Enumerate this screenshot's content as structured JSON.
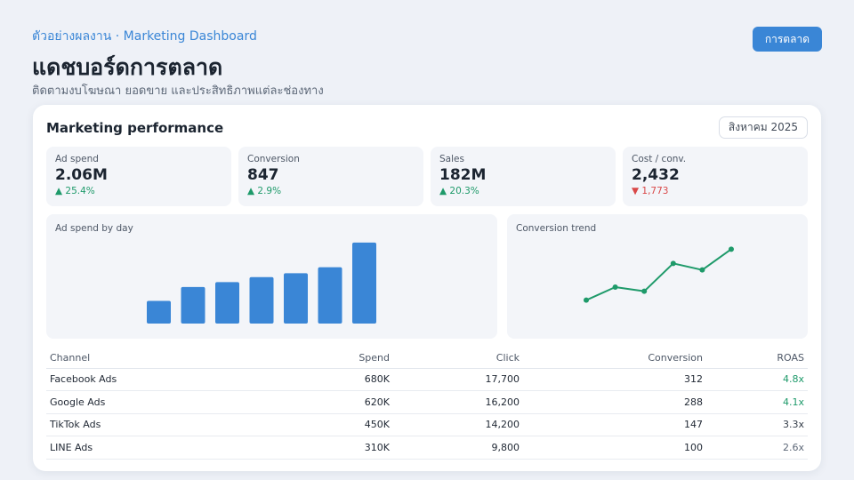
{
  "header": {
    "eyebrow": "ตัวอย่างผลงาน · Marketing Dashboard",
    "title": "แดชบอร์ดการตลาด",
    "subtitle": "ติดตามงบโฆษณา ยอดขาย และประสิทธิภาพแต่ละช่องทาง",
    "button_label": "การตลาด"
  },
  "card": {
    "title": "Marketing performance",
    "month_label": "สิงหาคม 2025"
  },
  "kpis": [
    {
      "label": "Ad spend",
      "value": "2.06M",
      "delta": "▲ 25.4%",
      "trend": "up"
    },
    {
      "label": "Conversion",
      "value": "847",
      "delta": "▲ 2.9%",
      "trend": "up"
    },
    {
      "label": "Sales",
      "value": "182M",
      "delta": "▲ 20.3%",
      "trend": "up"
    },
    {
      "label": "Cost / conv.",
      "value": "2,432",
      "delta": "▼ 1,773",
      "trend": "down"
    }
  ],
  "chart_data": [
    {
      "type": "bar",
      "title": "Ad spend by day",
      "values": [
        23,
        37,
        42,
        47,
        51,
        57,
        82
      ],
      "ylim": [
        0,
        90
      ],
      "grid": false,
      "color": "#3a86d6"
    },
    {
      "type": "line",
      "title": "Conversion trend",
      "values": [
        20,
        42,
        35,
        82,
        71,
        106
      ],
      "ylim": [
        0,
        120
      ],
      "grid": false,
      "color": "#1e9a6a"
    }
  ],
  "table": {
    "columns": [
      "Channel",
      "Spend",
      "Click",
      "Conversion",
      "ROAS"
    ],
    "rows": [
      {
        "channel": "Facebook Ads",
        "spend": "680K",
        "click": "17,700",
        "conversion": "312",
        "roas": "4.8x",
        "roas_level": "good"
      },
      {
        "channel": "Google Ads",
        "spend": "620K",
        "click": "16,200",
        "conversion": "288",
        "roas": "4.1x",
        "roas_level": "good"
      },
      {
        "channel": "TikTok Ads",
        "spend": "450K",
        "click": "14,200",
        "conversion": "147",
        "roas": "3.3x",
        "roas_level": "mid"
      },
      {
        "channel": "LINE Ads",
        "spend": "310K",
        "click": "9,800",
        "conversion": "100",
        "roas": "2.6x",
        "roas_level": "low"
      }
    ]
  }
}
